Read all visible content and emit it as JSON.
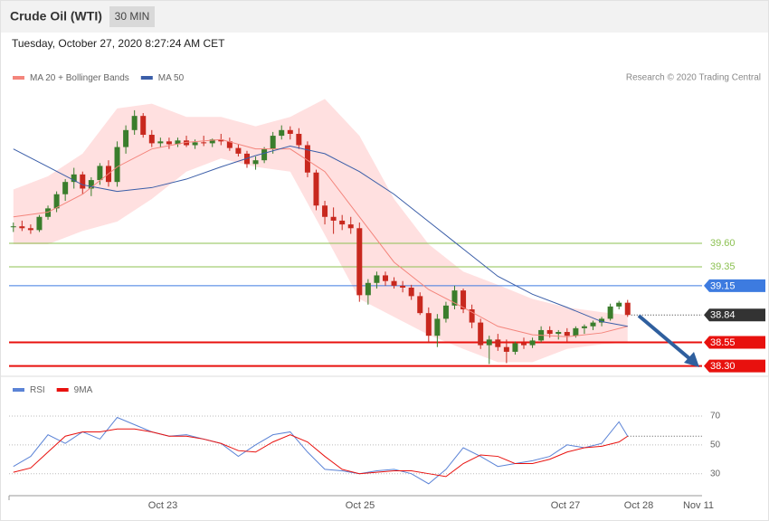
{
  "header": {
    "title": "Crude Oil (WTI)",
    "interval": "30 MIN",
    "timestamp": "Tuesday, October 27, 2020 8:27:24 AM CET"
  },
  "chart_data": [
    {
      "type": "candlestick",
      "credit": "Research © 2020 Trading Central",
      "xlim": [
        -0.5,
        79.6
      ],
      "ylim": [
        38.2,
        41.22
      ],
      "up_color": "#3a7d2c",
      "down_color": "#c8281e",
      "band_fill": "#ffe0e0",
      "candles": {
        "open": [
          39.77,
          39.78,
          39.76,
          39.74,
          39.88,
          39.97,
          40.12,
          40.25,
          40.33,
          40.18,
          40.27,
          40.42,
          40.25,
          40.62,
          40.8,
          40.95,
          40.75,
          40.66,
          40.68,
          40.65,
          40.69,
          40.64,
          40.67,
          40.66,
          40.7,
          40.68,
          40.61,
          40.55,
          40.44,
          40.48,
          40.6,
          40.74,
          40.8,
          40.76,
          40.64,
          40.35,
          40.0,
          39.88,
          39.84,
          39.8,
          39.76,
          39.05,
          39.18,
          39.26,
          39.2,
          39.15,
          39.13,
          39.04,
          38.86,
          38.62,
          38.8,
          38.94,
          39.1,
          38.9,
          38.76,
          38.52,
          38.58,
          38.5,
          38.45,
          38.54,
          38.52,
          38.57,
          38.68,
          38.64,
          38.66,
          38.62,
          38.7,
          38.72,
          38.76,
          38.8,
          38.93,
          38.97
        ],
        "high": [
          39.82,
          39.84,
          39.8,
          39.9,
          40.0,
          40.15,
          40.28,
          40.4,
          40.36,
          40.3,
          40.45,
          40.48,
          40.68,
          40.85,
          41.01,
          40.98,
          40.8,
          40.72,
          40.72,
          40.72,
          40.74,
          40.7,
          40.74,
          40.71,
          40.76,
          40.72,
          40.65,
          40.58,
          40.52,
          40.62,
          40.78,
          40.85,
          40.84,
          40.82,
          40.68,
          40.38,
          40.05,
          39.98,
          39.9,
          39.88,
          39.82,
          39.22,
          39.3,
          39.3,
          39.24,
          39.2,
          39.16,
          39.08,
          38.92,
          38.85,
          38.98,
          39.15,
          39.12,
          38.95,
          38.8,
          38.62,
          38.64,
          38.58,
          38.56,
          38.6,
          38.6,
          38.72,
          38.72,
          38.68,
          38.7,
          38.72,
          38.74,
          38.78,
          38.82,
          38.96,
          38.99,
          39.0
        ],
        "low": [
          39.72,
          39.73,
          39.7,
          39.72,
          39.85,
          39.93,
          40.05,
          40.18,
          40.12,
          40.1,
          40.22,
          40.2,
          40.2,
          40.55,
          40.75,
          40.72,
          40.62,
          40.62,
          40.6,
          40.62,
          40.62,
          40.6,
          40.63,
          40.62,
          40.64,
          40.58,
          40.52,
          40.4,
          40.38,
          40.45,
          40.55,
          40.7,
          40.7,
          40.6,
          40.3,
          39.95,
          39.8,
          39.7,
          39.74,
          39.7,
          38.98,
          38.95,
          39.12,
          39.15,
          39.12,
          39.08,
          39.0,
          38.84,
          38.55,
          38.5,
          38.76,
          38.9,
          38.86,
          38.7,
          38.48,
          38.32,
          38.46,
          38.33,
          38.42,
          38.48,
          38.49,
          38.55,
          38.6,
          38.58,
          38.56,
          38.6,
          38.64,
          38.68,
          38.72,
          38.78,
          38.9,
          38.82
        ],
        "close": [
          39.78,
          39.76,
          39.74,
          39.88,
          39.97,
          40.12,
          40.25,
          40.33,
          40.18,
          40.27,
          40.42,
          40.25,
          40.62,
          40.8,
          40.95,
          40.75,
          40.66,
          40.68,
          40.65,
          40.69,
          40.64,
          40.67,
          40.66,
          40.7,
          40.68,
          40.61,
          40.55,
          40.44,
          40.48,
          40.6,
          40.74,
          40.8,
          40.76,
          40.64,
          40.35,
          40.0,
          39.88,
          39.84,
          39.8,
          39.76,
          39.05,
          39.18,
          39.26,
          39.2,
          39.15,
          39.13,
          39.04,
          38.86,
          38.62,
          38.8,
          38.94,
          39.1,
          38.9,
          38.76,
          38.52,
          38.58,
          38.5,
          38.45,
          38.54,
          38.52,
          38.57,
          38.68,
          38.64,
          38.66,
          38.62,
          38.7,
          38.72,
          38.76,
          38.8,
          38.93,
          38.97,
          38.84
        ]
      },
      "overlays": {
        "x": [
          0,
          4,
          8,
          12,
          16,
          20,
          24,
          28,
          32,
          36,
          40,
          44,
          48,
          52,
          56,
          60,
          64,
          68,
          71
        ],
        "series": [
          {
            "name": "MA 20 + Bollinger Bands",
            "color": "#f4857c",
            "values": [
              39.88,
              39.93,
              40.12,
              40.41,
              40.6,
              40.67,
              40.7,
              40.6,
              40.6,
              40.36,
              39.88,
              39.4,
              39.11,
              38.92,
              38.72,
              38.63,
              38.61,
              38.65,
              38.72
            ],
            "upper": [
              40.17,
              40.31,
              40.55,
              41.03,
              41.08,
              40.94,
              40.94,
              40.84,
              40.94,
              41.13,
              40.74,
              40.07,
              39.59,
              39.3,
              39.16,
              39.01,
              38.92,
              38.87,
              38.84
            ],
            "lower": [
              39.59,
              39.59,
              39.73,
              39.83,
              40.07,
              40.36,
              40.5,
              40.41,
              40.36,
              39.69,
              39.01,
              38.82,
              38.63,
              38.48,
              38.34,
              38.34,
              38.48,
              38.53,
              38.55
            ]
          },
          {
            "name": "MA 50",
            "color": "#3b5ea8",
            "values": [
              40.6,
              40.41,
              40.22,
              40.15,
              40.19,
              40.28,
              40.41,
              40.53,
              40.63,
              40.55,
              40.36,
              40.12,
              39.83,
              39.54,
              39.25,
              39.06,
              38.92,
              38.77,
              38.72
            ]
          }
        ]
      },
      "levels": [
        {
          "value": 39.6,
          "label": "39.60",
          "color": "#8cc152",
          "kind": "resistance"
        },
        {
          "value": 39.35,
          "color": "#8cc152",
          "kind": "resistance"
        },
        {
          "value": 39.15,
          "color": "#3d7be0",
          "kind": "pivot"
        },
        {
          "value": 38.84,
          "color": "#333333",
          "kind": "last"
        },
        {
          "value": 38.55,
          "color": "#e8110e",
          "kind": "support"
        },
        {
          "value": 38.3,
          "label": "38.30",
          "color": "#e8110e",
          "kind": "support"
        }
      ]
    },
    {
      "type": "line",
      "xlim": [
        -0.5,
        79.6
      ],
      "ylim": [
        16,
        80
      ],
      "yticks": [
        30,
        50,
        70
      ],
      "grid": true,
      "x": [
        0,
        2,
        4,
        6,
        8,
        10,
        12,
        14,
        16,
        18,
        20,
        22,
        24,
        26,
        28,
        30,
        32,
        34,
        36,
        38,
        40,
        42,
        44,
        46,
        48,
        50,
        52,
        54,
        56,
        58,
        60,
        62,
        64,
        66,
        68,
        70,
        71
      ],
      "series": [
        {
          "name": "RSI",
          "color": "#5b83d6",
          "values": [
            35,
            42,
            57,
            51,
            59,
            54,
            69,
            64,
            59,
            56,
            57,
            54,
            51,
            42,
            50,
            57,
            59,
            45,
            33,
            32,
            30,
            32,
            33,
            30,
            23,
            33,
            48,
            42,
            35,
            37,
            39,
            42,
            50,
            48,
            51,
            66,
            56
          ]
        },
        {
          "name": "9MA",
          "color": "#e8110e",
          "values": [
            31,
            34,
            45,
            56,
            59,
            59,
            61,
            61,
            59,
            56,
            56,
            54,
            51,
            46,
            45,
            52,
            57,
            52,
            42,
            33,
            30,
            31,
            32,
            32,
            30,
            28,
            37,
            43,
            42,
            37,
            37,
            40,
            45,
            48,
            49,
            52,
            56
          ]
        }
      ],
      "xlabels": [
        "Oct 23",
        "Oct 25",
        "Oct 27",
        "Oct 28",
        "Nov 11"
      ]
    }
  ]
}
